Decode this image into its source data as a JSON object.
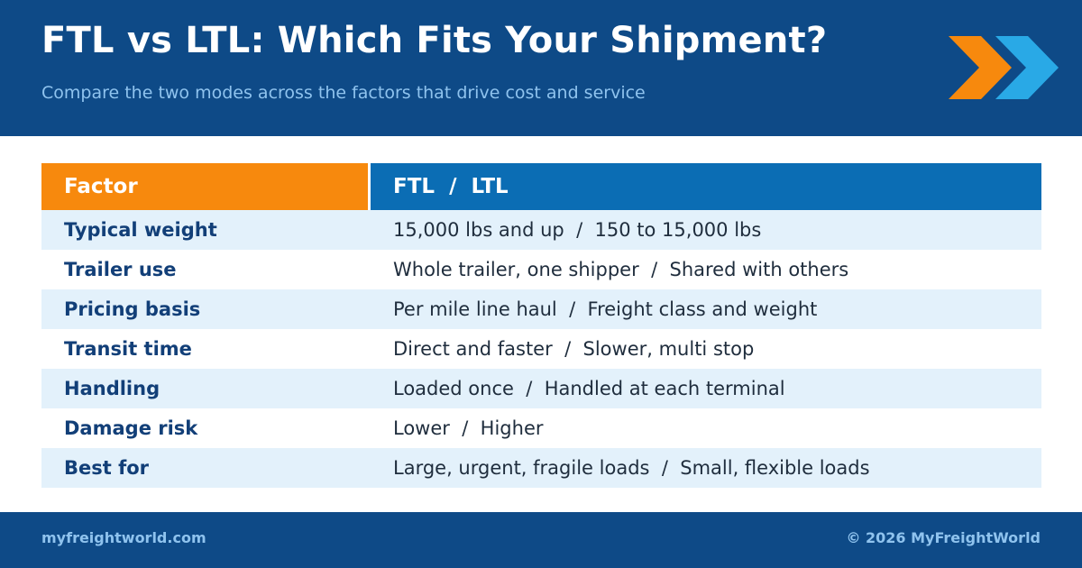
{
  "header": {
    "title": "FTL vs LTL: Which Fits Your Shipment?",
    "subtitle": "Compare the two modes across the factors that drive cost and service",
    "logo_icon": "double-chevron-right-icon"
  },
  "colors": {
    "navy": "#0e4a87",
    "orange": "#f7890d",
    "blue": "#0b6db4",
    "light_blue": "#29a9e6",
    "row_shade": "#e3f1fb"
  },
  "table": {
    "columns": [
      "Factor",
      "FTL  /  LTL"
    ],
    "rows": [
      {
        "factor": "Typical weight",
        "value": "15,000 lbs and up  /  150 to 15,000 lbs"
      },
      {
        "factor": "Trailer use",
        "value": "Whole trailer, one shipper  /  Shared with others"
      },
      {
        "factor": "Pricing basis",
        "value": "Per mile line haul  /  Freight class and weight"
      },
      {
        "factor": "Transit time",
        "value": "Direct and faster  /  Slower, multi stop"
      },
      {
        "factor": "Handling",
        "value": "Loaded once  /  Handled at each terminal"
      },
      {
        "factor": "Damage risk",
        "value": "Lower  /  Higher"
      },
      {
        "factor": "Best for",
        "value": "Large, urgent, fragile loads  /  Small, flexible loads"
      }
    ]
  },
  "footer": {
    "website": "myfreightworld.com",
    "copyright": "© 2026 MyFreightWorld"
  }
}
